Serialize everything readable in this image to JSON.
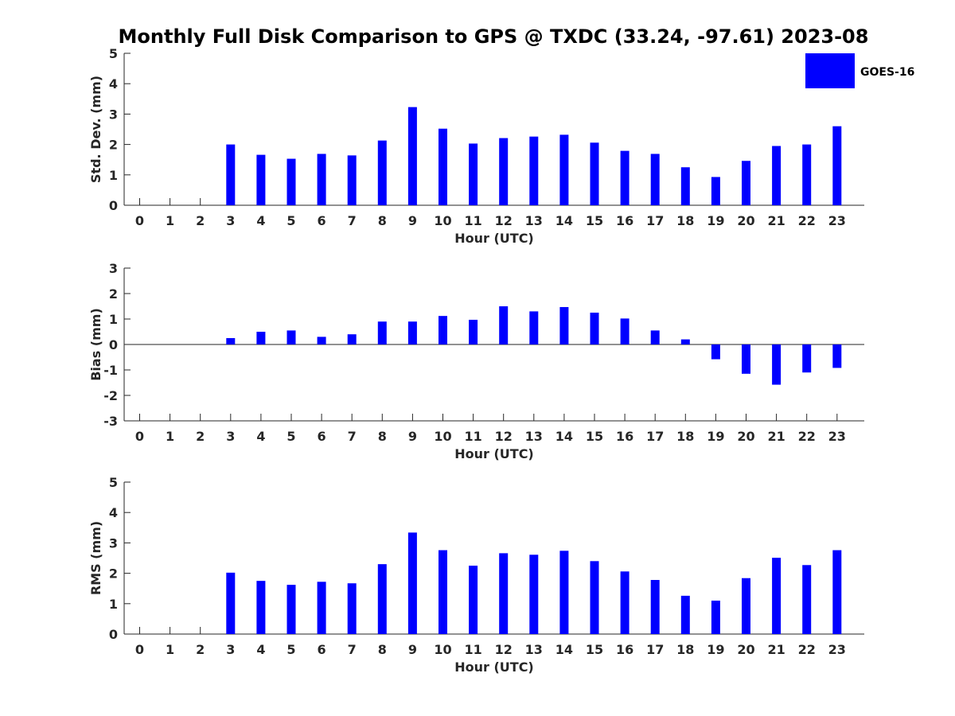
{
  "title": "Monthly Full Disk Comparison to GPS @ TXDC (33.24, -97.61) 2023-08",
  "colors": {
    "bar": "#0000ff",
    "axis": "#262626",
    "text": "#000000"
  },
  "chart_data": [
    {
      "type": "bar",
      "legend": [
        "GOES-16"
      ],
      "legend_position": "top-right",
      "categories": [
        "0",
        "1",
        "2",
        "3",
        "4",
        "5",
        "6",
        "7",
        "8",
        "9",
        "10",
        "11",
        "12",
        "13",
        "14",
        "15",
        "16",
        "17",
        "18",
        "19",
        "20",
        "21",
        "22",
        "23"
      ],
      "values": [
        null,
        null,
        null,
        2.0,
        1.66,
        1.53,
        1.69,
        1.64,
        2.13,
        3.23,
        2.52,
        2.03,
        2.21,
        2.26,
        2.32,
        2.06,
        1.79,
        1.69,
        1.25,
        0.93,
        1.46,
        1.95,
        2.0,
        2.6
      ],
      "xlabel": "Hour (UTC)",
      "ylabel": "Std. Dev. (mm)",
      "ylim": [
        0,
        5
      ],
      "yticks": [
        "0",
        "1",
        "2",
        "3",
        "4",
        "5"
      ]
    },
    {
      "type": "bar",
      "categories": [
        "0",
        "1",
        "2",
        "3",
        "4",
        "5",
        "6",
        "7",
        "8",
        "9",
        "10",
        "11",
        "12",
        "13",
        "14",
        "15",
        "16",
        "17",
        "18",
        "19",
        "20",
        "21",
        "22",
        "23"
      ],
      "values": [
        null,
        null,
        null,
        0.25,
        0.5,
        0.55,
        0.3,
        0.4,
        0.9,
        0.9,
        1.12,
        0.97,
        1.5,
        1.3,
        1.47,
        1.25,
        1.02,
        0.55,
        0.2,
        -0.58,
        -1.15,
        -1.58,
        -1.1,
        -0.92
      ],
      "xlabel": "Hour (UTC)",
      "ylabel": "Bias (mm)",
      "ylim": [
        -3,
        3
      ],
      "yticks": [
        "-3",
        "-2",
        "-1",
        "0",
        "1",
        "2",
        "3"
      ]
    },
    {
      "type": "bar",
      "categories": [
        "0",
        "1",
        "2",
        "3",
        "4",
        "5",
        "6",
        "7",
        "8",
        "9",
        "10",
        "11",
        "12",
        "13",
        "14",
        "15",
        "16",
        "17",
        "18",
        "19",
        "20",
        "21",
        "22",
        "23"
      ],
      "values": [
        null,
        null,
        null,
        2.02,
        1.75,
        1.62,
        1.72,
        1.67,
        2.3,
        3.34,
        2.76,
        2.25,
        2.66,
        2.61,
        2.74,
        2.4,
        2.06,
        1.78,
        1.26,
        1.1,
        1.84,
        2.51,
        2.27,
        2.76
      ],
      "xlabel": "Hour (UTC)",
      "ylabel": "RMS (mm)",
      "ylim": [
        0,
        5
      ],
      "yticks": [
        "0",
        "1",
        "2",
        "3",
        "4",
        "5"
      ]
    }
  ]
}
